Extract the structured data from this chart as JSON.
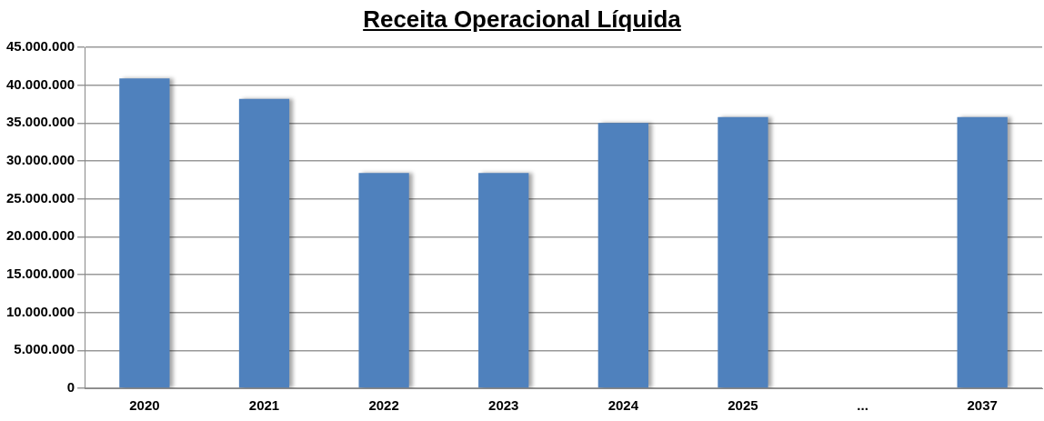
{
  "chart_data": {
    "type": "bar",
    "title": "Receita Operacional Líquida",
    "categories": [
      "2020",
      "2021",
      "2022",
      "2023",
      "2024",
      "2025",
      "...",
      "2037"
    ],
    "values": [
      40900000,
      38200000,
      28400000,
      28400000,
      35000000,
      35800000,
      null,
      35800000
    ],
    "color": "#4f81bd",
    "ylim": [
      0,
      45000000
    ],
    "yticks": [
      {
        "value": 0,
        "label": "0"
      },
      {
        "value": 5000000,
        "label": "5.000.000"
      },
      {
        "value": 10000000,
        "label": "10.000.000"
      },
      {
        "value": 15000000,
        "label": "15.000.000"
      },
      {
        "value": 20000000,
        "label": "20.000.000"
      },
      {
        "value": 25000000,
        "label": "25.000.000"
      },
      {
        "value": 30000000,
        "label": "30.000.000"
      },
      {
        "value": 35000000,
        "label": "35.000.000"
      },
      {
        "value": 40000000,
        "label": "40.000.000"
      },
      {
        "value": 45000000,
        "label": "45.000.000"
      }
    ],
    "grid": "y",
    "legend": false
  }
}
